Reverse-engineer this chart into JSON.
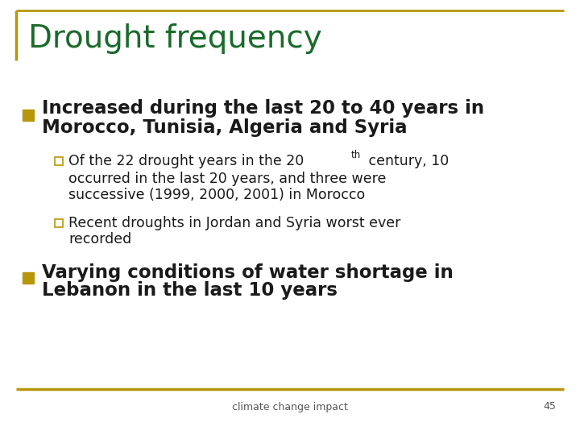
{
  "title": "Drought frequency",
  "title_color": "#1a6b2a",
  "background_color": "#ffffff",
  "border_color": "#b8960c",
  "bullet_color": "#b8960c",
  "text_color": "#1a1a1a",
  "footer_text": "climate change impact",
  "page_number": "45"
}
